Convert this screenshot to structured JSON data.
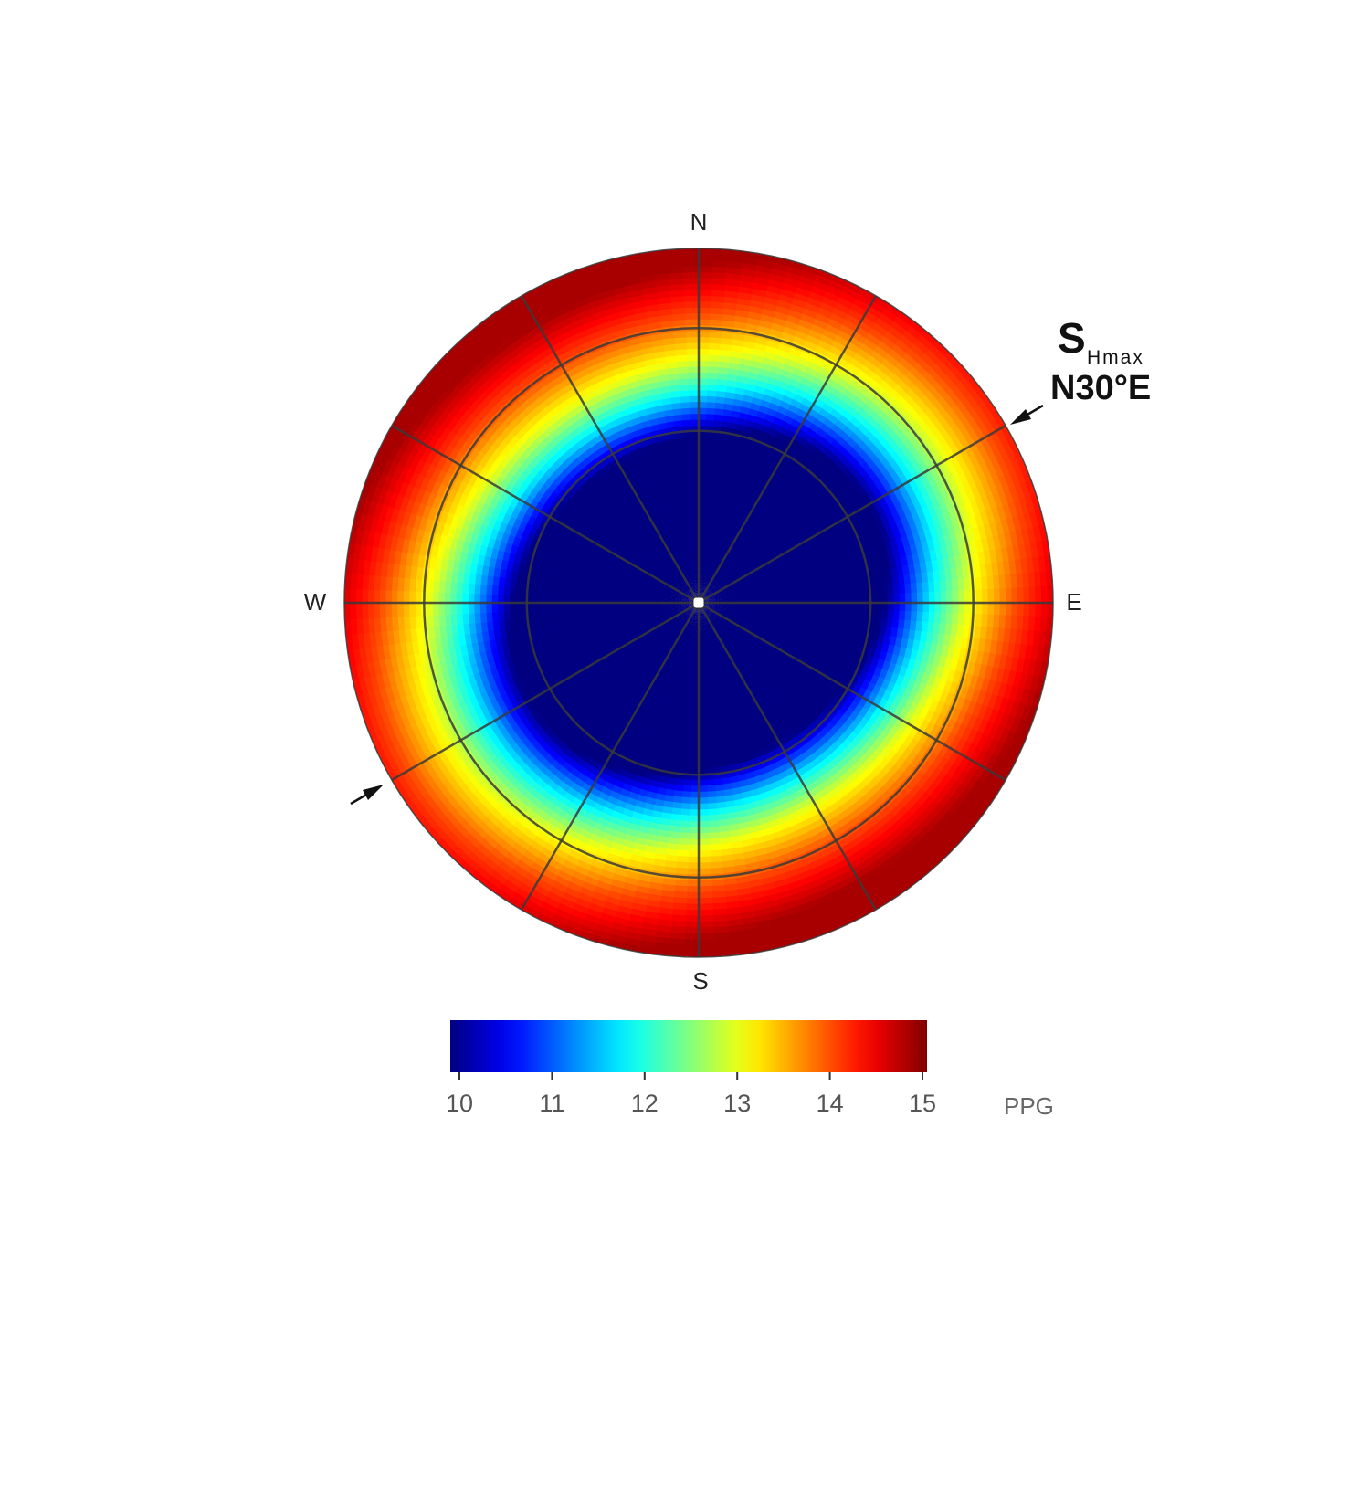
{
  "chart_data": {
    "type": "heatmap",
    "projection": "polar (stereonet-style plot of borehole orientations)",
    "directions": {
      "north": "N",
      "east": "E",
      "south": "S",
      "west": "W"
    },
    "colorbar": {
      "min": 10,
      "max": 15,
      "ticks": [
        "10",
        "11",
        "12",
        "13",
        "14",
        "15"
      ],
      "unit_label": "PPG",
      "colormap": "jet"
    },
    "field": {
      "description_values": "pore-pressure-gradient style values in PPG; ~10 inside inner region, rising to ~15 at outer rim",
      "low_region_radius_fraction": 0.52,
      "ring_values": [
        {
          "r": 0.0,
          "value": 10.0
        },
        {
          "r": 0.5,
          "value": 10.0
        },
        {
          "r": 0.62,
          "value": 11.8
        },
        {
          "r": 0.72,
          "value": 13.0
        },
        {
          "r": 0.85,
          "value": 14.0
        },
        {
          "r": 1.0,
          "value": 14.8
        }
      ],
      "max_along_azimuths_deg": [
        330,
        150
      ],
      "min_along_azimuths_deg": [
        60,
        240
      ]
    },
    "grid": {
      "radial_spokes_every_deg": 30,
      "rings": 3
    },
    "annotation": {
      "main": "S",
      "subscript": "Hmax",
      "azimuth": "N30°E",
      "azimuth_deg": 60
    },
    "colors": {
      "grid": "#3a3a3a",
      "stops": [
        "#00008f",
        "#0000ff",
        "#0080ff",
        "#00ffff",
        "#80ff80",
        "#ffff00",
        "#ff8000",
        "#ff0000",
        "#800000"
      ]
    }
  }
}
